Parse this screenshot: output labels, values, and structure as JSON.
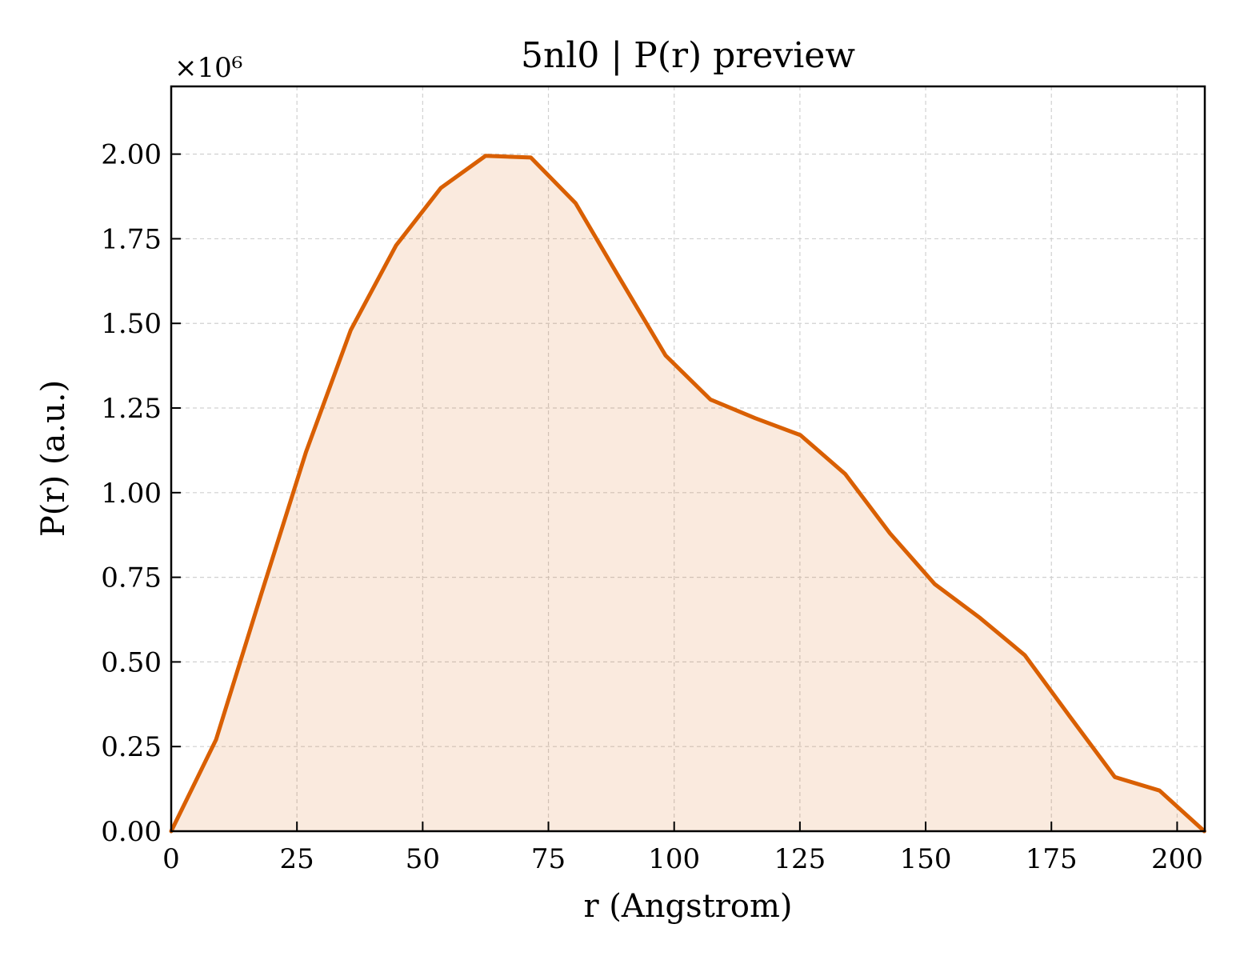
{
  "chart_data": {
    "type": "area",
    "title": "5nl0 | P(r) preview",
    "xlabel": "r (Angstrom)",
    "ylabel": "P(r) (a.u.)",
    "y_multiplier_label": "×10⁶",
    "xlim": [
      0,
      205.5
    ],
    "ylim": [
      0,
      2.2
    ],
    "y_scale_factor": 1000000,
    "x_ticks": [
      0,
      25,
      50,
      75,
      100,
      125,
      150,
      175,
      200
    ],
    "x_tick_labels": [
      "0",
      "25",
      "50",
      "75",
      "100",
      "125",
      "150",
      "175",
      "200"
    ],
    "y_ticks": [
      0,
      0.25,
      0.5,
      0.75,
      1.0,
      1.25,
      1.5,
      1.75,
      2.0
    ],
    "y_tick_labels": [
      "0.00",
      "0.25",
      "0.50",
      "0.75",
      "1.00",
      "1.25",
      "1.50",
      "1.75",
      "2.00"
    ],
    "grid": true,
    "series": [
      {
        "color": "#d95f02",
        "x": [
          0,
          8.9,
          17.9,
          26.8,
          35.7,
          44.7,
          53.6,
          62.5,
          71.5,
          80.4,
          89.3,
          98.3,
          107.2,
          116.1,
          125.1,
          134.0,
          142.9,
          151.8,
          160.8,
          169.7,
          178.6,
          187.6,
          196.5,
          205.4
        ],
        "y": [
          0,
          0.27,
          0.7,
          1.12,
          1.48,
          1.73,
          1.9,
          1.995,
          1.99,
          1.855,
          1.63,
          1.405,
          1.275,
          1.22,
          1.17,
          1.055,
          0.88,
          0.73,
          0.63,
          0.52,
          0.34,
          0.16,
          0.12,
          0
        ]
      }
    ]
  }
}
